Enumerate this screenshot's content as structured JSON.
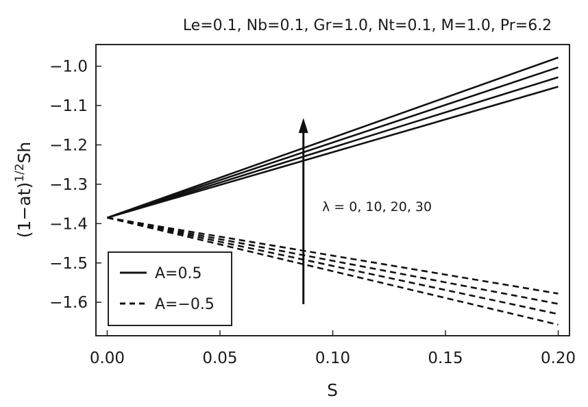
{
  "chart_data": {
    "type": "line",
    "title": "Le=0.1, Nb=0.1, Gr=1.0, Nt=0.1, M=1.0, Pr=6.2",
    "xlabel": "S",
    "ylabel": "(1−at)",
    "ylabel_sup": "1/2",
    "ylabel_tail": "Sh",
    "xlim": [
      -0.005,
      0.205
    ],
    "ylim": [
      -1.685,
      -0.945
    ],
    "xticks": [
      0.0,
      0.05,
      0.1,
      0.15,
      0.2
    ],
    "xtick_labels": [
      "0.00",
      "0.05",
      "0.10",
      "0.15",
      "0.20"
    ],
    "yticks": [
      -1.0,
      -1.1,
      -1.2,
      -1.3,
      -1.4,
      -1.5,
      -1.6
    ],
    "ytick_labels": [
      "−1.0",
      "−1.1",
      "−1.2",
      "−1.3",
      "−1.4",
      "−1.5",
      "−1.6"
    ],
    "grid": false,
    "legend": {
      "position": "bottom-left",
      "entries": [
        {
          "label": "A=0.5",
          "style": "solid"
        },
        {
          "label": "A=−0.5",
          "style": "dashed"
        }
      ]
    },
    "series": [
      {
        "group": "A=0.5",
        "style": "solid",
        "x": [
          0.0,
          0.2
        ],
        "y": [
          -1.385,
          -1.052
        ]
      },
      {
        "group": "A=0.5",
        "style": "solid",
        "x": [
          0.0,
          0.2
        ],
        "y": [
          -1.385,
          -1.028
        ]
      },
      {
        "group": "A=0.5",
        "style": "solid",
        "x": [
          0.0,
          0.2
        ],
        "y": [
          -1.385,
          -1.003
        ]
      },
      {
        "group": "A=0.5",
        "style": "solid",
        "x": [
          0.0,
          0.2
        ],
        "y": [
          -1.385,
          -0.978
        ]
      },
      {
        "group": "A=-0.5",
        "style": "dashed",
        "x": [
          0.0,
          0.2
        ],
        "y": [
          -1.385,
          -1.657
        ]
      },
      {
        "group": "A=-0.5",
        "style": "dashed",
        "x": [
          0.0,
          0.2
        ],
        "y": [
          -1.385,
          -1.63
        ]
      },
      {
        "group": "A=-0.5",
        "style": "dashed",
        "x": [
          0.0,
          0.2
        ],
        "y": [
          -1.385,
          -1.604
        ]
      },
      {
        "group": "A=-0.5",
        "style": "dashed",
        "x": [
          0.0,
          0.2
        ],
        "y": [
          -1.385,
          -1.578
        ]
      }
    ],
    "annotations": [
      {
        "text": "λ = 0, 10, 20, 30",
        "arrow": {
          "x": 0.087,
          "y_from": -1.605,
          "y_to": -1.135,
          "direction": "up"
        }
      }
    ],
    "colors": {
      "line": "#111111",
      "frame": "#222222",
      "background": "#ffffff"
    }
  }
}
